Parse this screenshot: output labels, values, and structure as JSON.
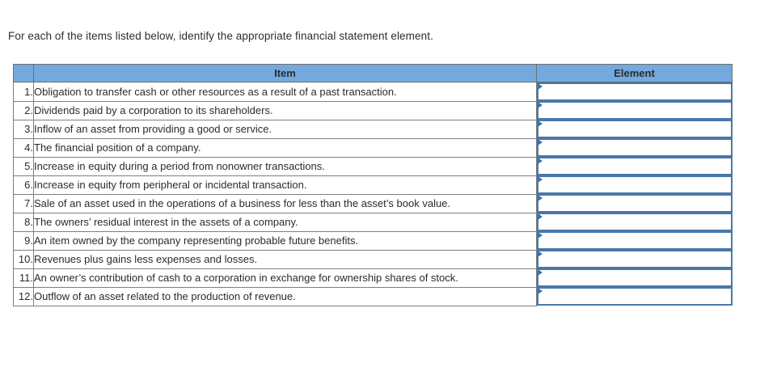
{
  "instruction": "For each of the items listed below, identify the appropriate financial statement element.",
  "table": {
    "headers": {
      "number": "",
      "item": "Item",
      "element": "Element"
    },
    "rows": [
      {
        "num": "1.",
        "item": "Obligation to transfer cash or other resources as a result of a past transaction.",
        "element_value": ""
      },
      {
        "num": "2.",
        "item": "Dividends paid by a corporation to its shareholders.",
        "element_value": ""
      },
      {
        "num": "3.",
        "item": "Inflow of an asset from providing a good or service.",
        "element_value": ""
      },
      {
        "num": "4.",
        "item": "The financial position of a company.",
        "element_value": ""
      },
      {
        "num": "5.",
        "item": "Increase in equity during a period from nonowner transactions.",
        "element_value": ""
      },
      {
        "num": "6.",
        "item": "Increase in equity from peripheral or incidental transaction.",
        "element_value": ""
      },
      {
        "num": "7.",
        "item": "Sale of an asset used in the operations of a business for less than the asset’s book value.",
        "element_value": ""
      },
      {
        "num": "8.",
        "item": "The owners’ residual interest in the assets of a company.",
        "element_value": ""
      },
      {
        "num": "9.",
        "item": "An item owned by the company representing probable future benefits.",
        "element_value": ""
      },
      {
        "num": "10.",
        "item": "Revenues plus gains less expenses and losses.",
        "element_value": ""
      },
      {
        "num": "11.",
        "item": "An owner’s contribution of cash to a corporation in exchange for ownership shares of stock.",
        "element_value": ""
      },
      {
        "num": "12.",
        "item": "Outflow of an asset related to the production of revenue.",
        "element_value": ""
      }
    ]
  },
  "icons": {
    "dropdown_marker": "right-triangle-icon"
  },
  "colors": {
    "header_bg": "#74a9df",
    "header_text": "#24292e",
    "grid_border": "#7f7f7f",
    "outer_border": "#6e6e6e",
    "dropdown_border": "#4878a8",
    "dropdown_marker": "#3973ad",
    "body_text": "#2b2b2b",
    "page_bg": "#ffffff"
  }
}
